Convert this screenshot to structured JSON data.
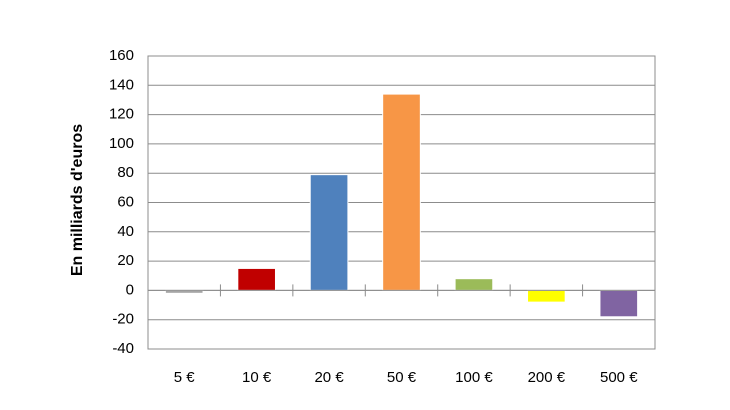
{
  "chart_data": {
    "type": "bar",
    "y_label": "En milliards d'euros",
    "categories": [
      "5 €",
      "10 €",
      "20 €",
      "50 €",
      "100 €",
      "200 €",
      "500 €"
    ],
    "values": [
      -2,
      15,
      79,
      134,
      8,
      -8,
      -18
    ],
    "colors": [
      "#a6a6a6",
      "#c00000",
      "#4f81bd",
      "#f79646",
      "#9bbb59",
      "#ffff00",
      "#8064a2"
    ],
    "ylim": [
      -40,
      160
    ],
    "yticks": [
      -40,
      -20,
      0,
      20,
      40,
      60,
      80,
      100,
      120,
      140,
      160
    ],
    "grid": true
  }
}
